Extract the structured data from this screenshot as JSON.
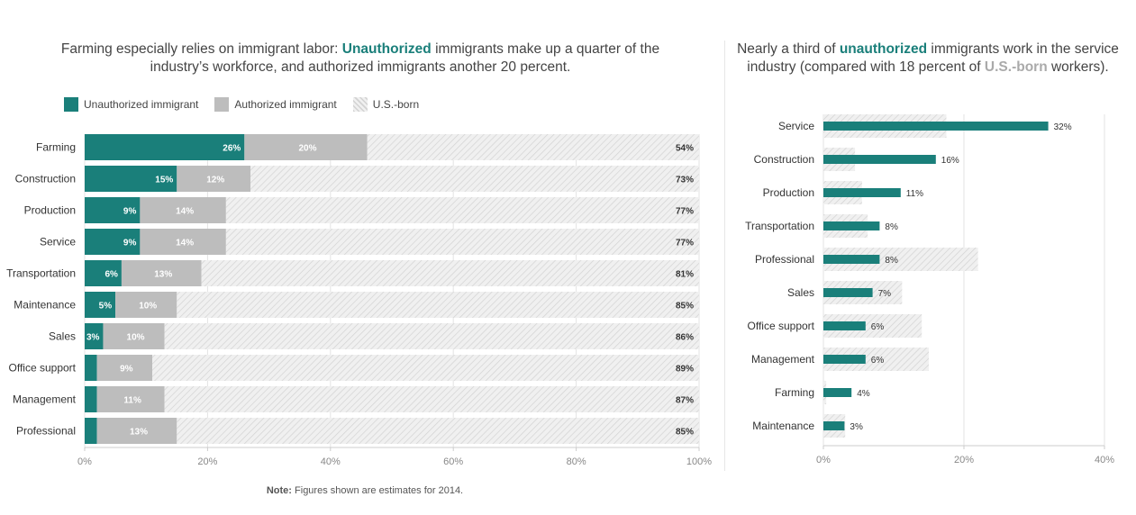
{
  "colors": {
    "unauthorized": "#1a7f7a",
    "authorized": "#bdbdbd",
    "us_born_bg": "#f0f0f0",
    "us_born_hatch": "#d2d2d2",
    "axis_text": "#888888",
    "grid": "#e3e3e3"
  },
  "left_title": {
    "part1": "Farming especially relies on immigrant labor: ",
    "bold": "Unauthorized",
    "part2": " immigrants make up a quarter of the industry’s workforce, and authorized immigrants another 20 percent."
  },
  "right_title": {
    "part1": "Nearly a third of ",
    "bold1": "unauthorized",
    "part2": " immigrants work in the service industry (compared with 18 percent of ",
    "bold2": "U.S.-born",
    "part3": " workers)."
  },
  "legend": {
    "unauthorized": "Unauthorized immigrant",
    "authorized": "Authorized immigrant",
    "us_born": "U.S.-born"
  },
  "note": {
    "label": "Note:",
    "text": " Figures shown are estimates for 2014."
  },
  "chart_data": [
    {
      "type": "bar",
      "stacked": true,
      "orientation": "horizontal",
      "categories": [
        "Farming",
        "Construction",
        "Production",
        "Service",
        "Transportation",
        "Maintenance",
        "Sales",
        "Office support",
        "Management",
        "Professional"
      ],
      "series": [
        {
          "name": "Unauthorized immigrant",
          "values": [
            26,
            15,
            9,
            9,
            6,
            5,
            3,
            2,
            2,
            2
          ],
          "labels": [
            "26%",
            "15%",
            "9%",
            "9%",
            "6%",
            "5%",
            "3%",
            "",
            "",
            ""
          ]
        },
        {
          "name": "Authorized immigrant",
          "values": [
            20,
            12,
            14,
            14,
            13,
            10,
            10,
            9,
            11,
            13
          ],
          "labels": [
            "20%",
            "12%",
            "14%",
            "14%",
            "13%",
            "10%",
            "10%",
            "9%",
            "11%",
            "13%"
          ]
        },
        {
          "name": "U.S.-born",
          "values": [
            54,
            73,
            77,
            77,
            81,
            85,
            86,
            89,
            87,
            85
          ],
          "labels": [
            "54%",
            "73%",
            "77%",
            "77%",
            "81%",
            "85%",
            "86%",
            "89%",
            "87%",
            "85%"
          ]
        }
      ],
      "xlim": [
        0,
        100
      ],
      "xticks": [
        "0%",
        "20%",
        "40%",
        "60%",
        "80%",
        "100%"
      ],
      "grid": true,
      "legend_position": "top-left"
    },
    {
      "type": "bar",
      "orientation": "horizontal",
      "overlay": true,
      "categories": [
        "Service",
        "Construction",
        "Production",
        "Transportation",
        "Professional",
        "Sales",
        "Office support",
        "Management",
        "Farming",
        "Maintenance"
      ],
      "series": [
        {
          "name": "U.S.-born",
          "values": [
            17.5,
            4.5,
            5.5,
            6.3,
            22,
            11.2,
            14,
            15,
            0.4,
            3.1
          ]
        },
        {
          "name": "unauthorized",
          "values": [
            32,
            16,
            11,
            8,
            8,
            7,
            6,
            6,
            4,
            3
          ],
          "labels": [
            "32%",
            "16%",
            "11%",
            "8%",
            "8%",
            "7%",
            "6%",
            "6%",
            "4%",
            "3%"
          ]
        }
      ],
      "xlim": [
        0,
        40
      ],
      "xticks": [
        "0%",
        "20%",
        "40%"
      ],
      "grid": true
    }
  ]
}
